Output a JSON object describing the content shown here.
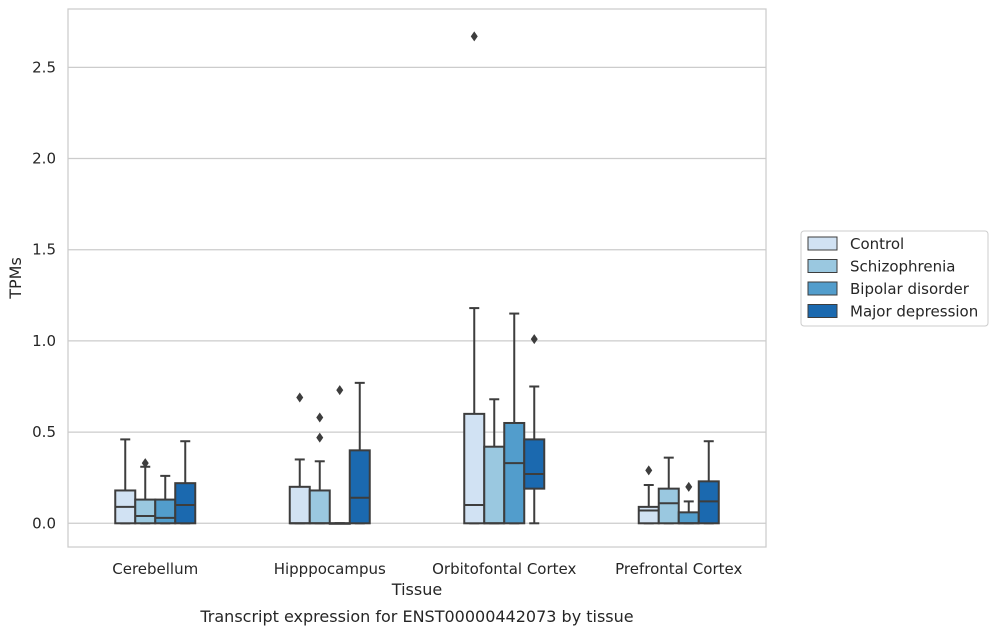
{
  "chart_data": {
    "type": "box",
    "caption": "Transcript expression for ENST00000442073 by tissue",
    "xlabel": "Tissue",
    "ylabel": "TPMs",
    "ylim": [
      -0.13,
      2.82
    ],
    "yticks": [
      "0.0",
      "0.5",
      "1.0",
      "1.5",
      "2.0",
      "2.5"
    ],
    "ytick_values": [
      0.0,
      0.5,
      1.0,
      1.5,
      2.0,
      2.5
    ],
    "grid": true,
    "legend_position": "right",
    "categories": [
      "Cerebellum",
      "Hipppocampus",
      "Orbitofontal Cortex",
      "Prefrontal Cortex"
    ],
    "series": [
      {
        "name": "Control",
        "color": "#d1e2f3",
        "boxes": [
          {
            "q1": 0.0,
            "median": 0.09,
            "q3": 0.18,
            "whisker_low": 0.0,
            "whisker_high": 0.46,
            "outliers": []
          },
          {
            "q1": 0.0,
            "median": 0.0,
            "q3": 0.2,
            "whisker_low": 0.0,
            "whisker_high": 0.35,
            "outliers": [
              0.69
            ]
          },
          {
            "q1": 0.0,
            "median": 0.1,
            "q3": 0.6,
            "whisker_low": 0.0,
            "whisker_high": 1.18,
            "outliers": [
              2.67
            ]
          },
          {
            "q1": 0.0,
            "median": 0.07,
            "q3": 0.09,
            "whisker_low": 0.0,
            "whisker_high": 0.21,
            "outliers": [
              0.29
            ]
          }
        ]
      },
      {
        "name": "Schizophrenia",
        "color": "#9ac8e0",
        "boxes": [
          {
            "q1": 0.0,
            "median": 0.04,
            "q3": 0.13,
            "whisker_low": 0.0,
            "whisker_high": 0.31,
            "outliers": [
              0.33
            ]
          },
          {
            "q1": 0.0,
            "median": 0.0,
            "q3": 0.18,
            "whisker_low": 0.0,
            "whisker_high": 0.34,
            "outliers": [
              0.47,
              0.58
            ]
          },
          {
            "q1": 0.0,
            "median": 0.0,
            "q3": 0.42,
            "whisker_low": 0.0,
            "whisker_high": 0.68,
            "outliers": []
          },
          {
            "q1": 0.0,
            "median": 0.11,
            "q3": 0.19,
            "whisker_low": 0.0,
            "whisker_high": 0.36,
            "outliers": []
          }
        ]
      },
      {
        "name": "Bipolar disorder",
        "color": "#529dcc",
        "boxes": [
          {
            "q1": 0.0,
            "median": 0.03,
            "q3": 0.13,
            "whisker_low": 0.0,
            "whisker_high": 0.26,
            "outliers": []
          },
          {
            "q1": 0.0,
            "median": 0.0,
            "q3": 0.0,
            "whisker_low": 0.0,
            "whisker_high": 0.0,
            "outliers": [
              0.73
            ]
          },
          {
            "q1": 0.0,
            "median": 0.33,
            "q3": 0.55,
            "whisker_low": 0.0,
            "whisker_high": 1.15,
            "outliers": []
          },
          {
            "q1": 0.0,
            "median": 0.0,
            "q3": 0.06,
            "whisker_low": 0.0,
            "whisker_high": 0.12,
            "outliers": [
              0.2
            ]
          }
        ]
      },
      {
        "name": "Major depression",
        "color": "#1b69af",
        "boxes": [
          {
            "q1": 0.0,
            "median": 0.1,
            "q3": 0.22,
            "whisker_low": 0.0,
            "whisker_high": 0.45,
            "outliers": []
          },
          {
            "q1": 0.0,
            "median": 0.14,
            "q3": 0.4,
            "whisker_low": 0.0,
            "whisker_high": 0.77,
            "outliers": []
          },
          {
            "q1": 0.19,
            "median": 0.27,
            "q3": 0.46,
            "whisker_low": 0.0,
            "whisker_high": 0.75,
            "outliers": [
              1.01
            ]
          },
          {
            "q1": 0.0,
            "median": 0.12,
            "q3": 0.23,
            "whisker_low": 0.0,
            "whisker_high": 0.45,
            "outliers": []
          }
        ]
      }
    ]
  }
}
